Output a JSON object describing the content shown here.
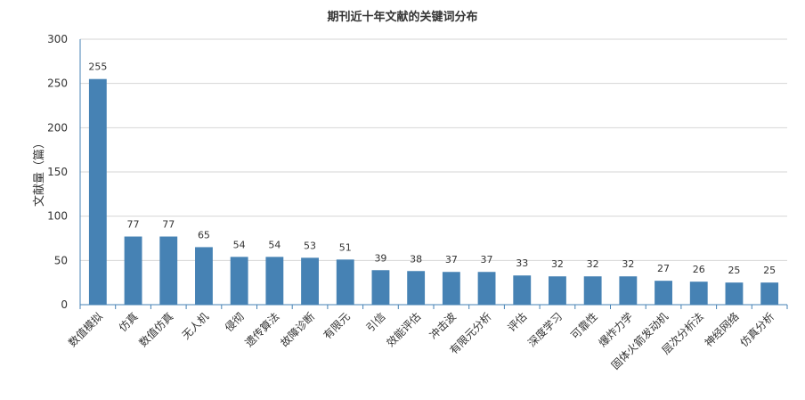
{
  "chart_data": {
    "type": "bar",
    "title": "期刊近十年文献的关键词分布",
    "xlabel": "",
    "ylabel": "文献量（篇）",
    "ylim": [
      0,
      300
    ],
    "yticks": [
      0,
      50,
      100,
      150,
      200,
      250,
      300
    ],
    "grid": true,
    "categories": [
      "数值模拟",
      "仿真",
      "数值仿真",
      "无人机",
      "侵彻",
      "遗传算法",
      "故障诊断",
      "有限元",
      "引信",
      "效能评估",
      "冲击波",
      "有限元分析",
      "评估",
      "深度学习",
      "可靠性",
      "爆炸力学",
      "固体火箭发动机",
      "层次分析法",
      "神经网络",
      "仿真分析"
    ],
    "values": [
      255,
      77,
      77,
      65,
      54,
      54,
      53,
      51,
      39,
      38,
      37,
      37,
      33,
      32,
      32,
      32,
      27,
      26,
      25,
      25
    ],
    "bar_color": "#4682B4",
    "axis_color": "#4682B4",
    "grid_color": "#D6D6D6"
  }
}
